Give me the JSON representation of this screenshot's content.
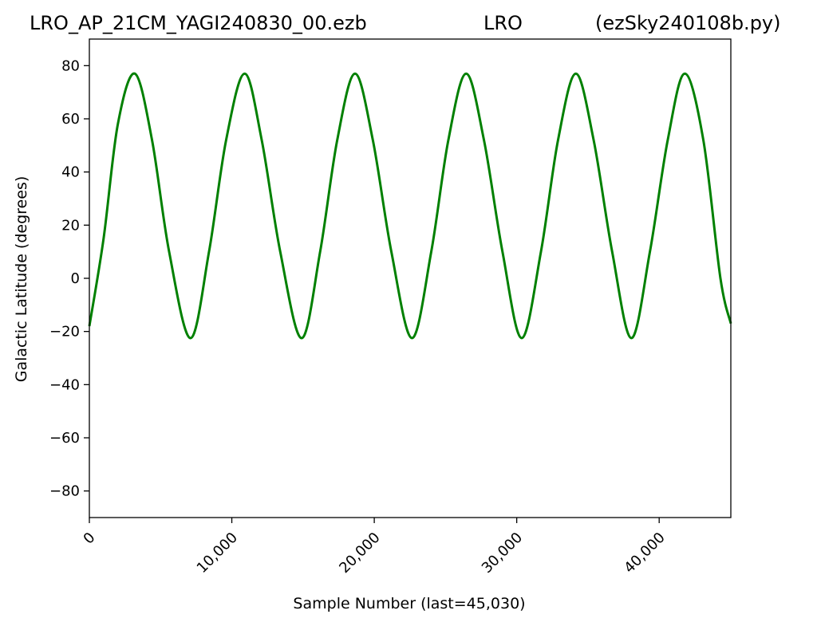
{
  "title_left": "LRO_AP_21CM_YAGI240830_00.ezb",
  "title_center": "LRO",
  "title_right": "(ezSky240108b.py)",
  "chart_data": {
    "type": "line",
    "xlabel": "Sample Number (last=45,030)",
    "ylabel": "Galactic Latitude (degrees)",
    "xlim": [
      0,
      45030
    ],
    "ylim": [
      -90,
      90
    ],
    "xticks": [
      0,
      10000,
      20000,
      30000,
      40000
    ],
    "xtick_labels": [
      "0",
      "10,000",
      "20,000",
      "30,000",
      "40,000"
    ],
    "yticks": [
      80,
      60,
      40,
      20,
      0,
      -20,
      -40,
      -60,
      -80
    ],
    "ytick_labels": [
      "80",
      "60",
      "40",
      "20",
      "0",
      "−20",
      "−40",
      "−60",
      "−80"
    ],
    "grid": false,
    "series": [
      {
        "color": "#008000",
        "x": [
          0,
          1000,
          2000,
          3200,
          4400,
          5600,
          7100,
          8400,
          9600,
          10900,
          12100,
          13400,
          14900,
          16200,
          17400,
          18650,
          19900,
          21200,
          22650,
          24000,
          25200,
          26450,
          27700,
          29000,
          30350,
          31700,
          32900,
          34150,
          35400,
          36700,
          38050,
          39350,
          40600,
          41800,
          43100,
          44300,
          45030
        ],
        "y": [
          -18,
          15,
          58,
          77,
          52,
          10,
          -22.5,
          10,
          52,
          77,
          52,
          10,
          -22.5,
          10,
          52,
          77,
          52,
          10,
          -22.5,
          10,
          52,
          77,
          52,
          10,
          -22.5,
          10,
          52,
          77,
          52,
          10,
          -22.5,
          10,
          52,
          77,
          52,
          0,
          -17
        ]
      }
    ]
  }
}
